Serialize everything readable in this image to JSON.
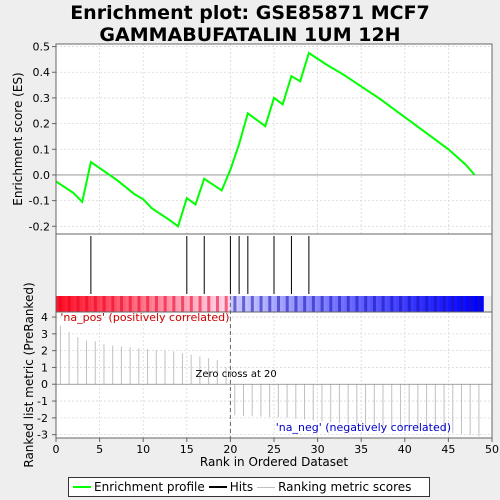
{
  "title_line1": "Enrichment plot: GSE85871 MCF7",
  "title_line2": "GAMMABUFATALIN 1UM 12H",
  "chart_data": {
    "type": "line",
    "title": "Enrichment plot: GSE85871 MCF7 GAMMABUFATALIN 1UM 12H",
    "xlabel": "Rank in Ordered Dataset",
    "ylabel_top": "Enrichment score (ES)",
    "ylabel_bottom": "Ranked list metric (PreRanked)",
    "xlim": [
      0,
      50
    ],
    "xticks": [
      0,
      5,
      10,
      15,
      20,
      25,
      30,
      35,
      40,
      45,
      50
    ],
    "es_ylim": [
      -0.23,
      0.51
    ],
    "es_yticks": [
      -0.2,
      -0.1,
      0.0,
      0.1,
      0.2,
      0.3,
      0.4,
      0.5
    ],
    "metric_ylim": [
      -3.2,
      4.3
    ],
    "metric_yticks": [
      -3,
      -2,
      -1,
      0,
      1,
      2,
      3,
      4
    ],
    "es_series": {
      "name": "Enrichment profile",
      "color": "#00ff00",
      "x": [
        0,
        2,
        3,
        4,
        7,
        9,
        10,
        11,
        13,
        14,
        15,
        16,
        17,
        19,
        20,
        21,
        22,
        24,
        25,
        26,
        27,
        28,
        29,
        31,
        33,
        35,
        37,
        39,
        41,
        43,
        45,
        47,
        48
      ],
      "y": [
        -0.025,
        -0.07,
        -0.105,
        0.05,
        -0.02,
        -0.075,
        -0.095,
        -0.13,
        -0.175,
        -0.2,
        -0.09,
        -0.115,
        -0.015,
        -0.06,
        0.02,
        0.12,
        0.24,
        0.19,
        0.3,
        0.275,
        0.385,
        0.365,
        0.475,
        0.43,
        0.39,
        0.345,
        0.3,
        0.25,
        0.2,
        0.15,
        0.1,
        0.04,
        0.0
      ]
    },
    "hits": [
      4,
      15,
      17,
      20,
      21,
      22,
      25,
      27,
      29
    ],
    "metric_values": [
      3.5,
      3.1,
      2.8,
      2.6,
      2.55,
      2.4,
      2.3,
      2.25,
      2.2,
      2.15,
      2.1,
      2.05,
      2.0,
      1.95,
      1.85,
      1.75,
      1.65,
      1.55,
      1.45,
      1.0,
      -1.85,
      -1.88,
      -1.9,
      -1.92,
      -1.95,
      -1.97,
      -2.0,
      -2.05,
      -2.1,
      -2.15,
      -2.2,
      -2.25,
      -2.3,
      -2.35,
      -2.38,
      -2.4,
      -2.45,
      -2.5,
      -2.55,
      -2.6,
      -2.65,
      -2.7,
      -2.75,
      -2.8,
      -2.85,
      -2.9,
      -2.95,
      -3.0,
      -3.1
    ],
    "zero_cross_rank": 20,
    "annotations": {
      "pos": "'na_pos' (positively correlated)",
      "neg": "'na_neg' (negatively correlated)",
      "zero": "Zero cross at 20"
    },
    "legend": [
      {
        "label": "Enrichment profile",
        "color": "#00ff00"
      },
      {
        "label": "Hits",
        "color": "#000000"
      },
      {
        "label": "Ranking metric scores",
        "color": "#c0c0c0"
      }
    ],
    "legend_position": "bottom",
    "grid": true
  }
}
